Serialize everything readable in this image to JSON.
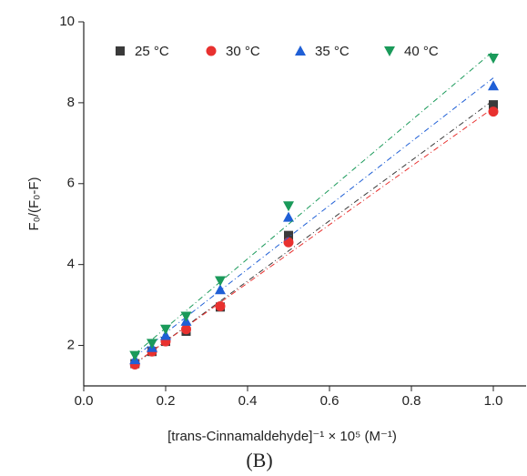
{
  "chart_data": {
    "type": "scatter",
    "x_label": "[trans-Cinnamaldehyde]⁻¹ × 10⁵ (M⁻¹)",
    "y_label": "F₀/(F₀-F)",
    "caption": "(B)",
    "x": [
      0.125,
      0.1667,
      0.2,
      0.25,
      0.3333,
      0.5,
      1.0
    ],
    "series": [
      {
        "name": "25 °C",
        "color": "#3a3a3a",
        "marker": "square",
        "values": [
          1.55,
          1.85,
          2.1,
          2.35,
          2.95,
          4.72,
          7.95
        ]
      },
      {
        "name": "30 °C",
        "color": "#e8312f",
        "marker": "circle",
        "values": [
          1.53,
          1.85,
          2.1,
          2.4,
          2.97,
          4.55,
          7.78
        ]
      },
      {
        "name": "35 °C",
        "color": "#1f5fd6",
        "marker": "triangle-up",
        "values": [
          1.65,
          1.95,
          2.25,
          2.6,
          3.38,
          5.17,
          8.42
        ]
      },
      {
        "name": "40 °C",
        "color": "#1a9a5a",
        "marker": "triangle-down",
        "values": [
          1.75,
          2.05,
          2.4,
          2.72,
          3.6,
          5.45,
          9.1
        ]
      }
    ],
    "xlim": [
      0,
      1.08
    ],
    "ylim": [
      1,
      10
    ],
    "xticks": [
      {
        "value": 0,
        "label": "0.0"
      },
      {
        "value": 0.2,
        "label": "0.2"
      },
      {
        "value": 0.4,
        "label": "0.4"
      },
      {
        "value": 0.6,
        "label": "0.6"
      },
      {
        "value": 0.8,
        "label": "0.8"
      },
      {
        "value": 1.0,
        "label": "1.0"
      }
    ],
    "yticks": [
      2,
      4,
      6,
      8,
      10
    ],
    "fit_lines": true
  }
}
